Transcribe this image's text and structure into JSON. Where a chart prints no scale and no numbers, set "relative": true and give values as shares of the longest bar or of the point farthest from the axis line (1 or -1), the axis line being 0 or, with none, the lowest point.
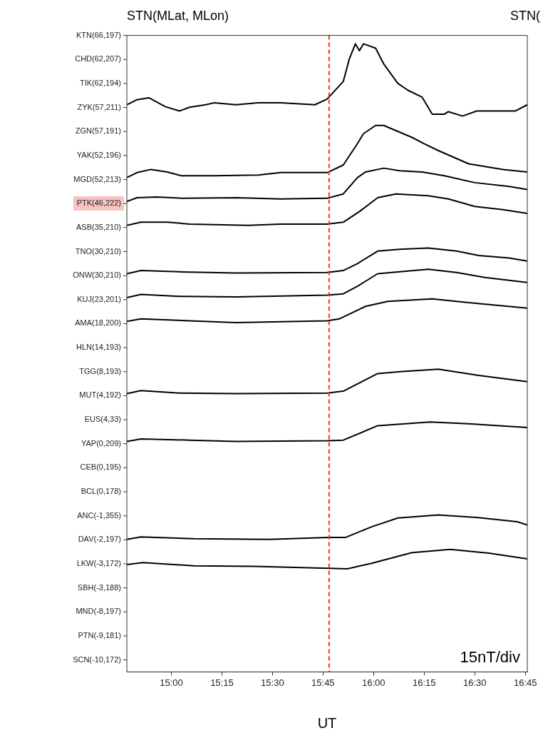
{
  "chart_data": {
    "type": "line",
    "title": "STN(MLat, MLon)",
    "xlabel": "UT",
    "annotations": [
      "15nT/div",
      "STN("
    ],
    "relative": true,
    "xlim": [
      14.78,
      16.76
    ],
    "xticks": [
      {
        "value": 15,
        "label": "15:00"
      },
      {
        "value": 15.25,
        "label": "15:15"
      },
      {
        "value": 15.5,
        "label": "15:30"
      },
      {
        "value": 15.75,
        "label": "15:45"
      },
      {
        "value": 16,
        "label": "16:00"
      },
      {
        "value": 16.25,
        "label": "16:15"
      },
      {
        "value": 16.5,
        "label": "16:30"
      },
      {
        "value": 16.75,
        "label": "16:45"
      }
    ],
    "y_categories": [
      "KTN(66,197)",
      "CHD(62,207)",
      "TIK(62,194)",
      "ZYK(57,211)",
      "ZGN(57,191)",
      "YAK(52,196)",
      "MGD(52,213)",
      "PTK(46,222)",
      "ASB(35,210)",
      "TNO(30,210)",
      "ONW(30,210)",
      "KUJ(23,201)",
      "AMA(18,200)",
      "HLN(14,193)",
      "TGG(8,193)",
      "MUT(4,192)",
      "EUS(4,33)",
      "YAP(0,209)",
      "CEB(0,195)",
      "BCL(0,178)",
      "ANC(-1,355)",
      "DAV(-2,197)",
      "LKW(-3,172)",
      "SBH(-3,188)",
      "MND(-8,197)",
      "PTN(-9,181)",
      "SCN(-10,172)"
    ],
    "marker": "none",
    "line_style": "solid",
    "ref_lines": [
      {
        "axis": "x",
        "value": 15.78,
        "color": "#ff2a2a",
        "line_style": "dashed"
      }
    ],
    "series": [
      {
        "color": "#000000",
        "x": [
          14.78,
          14.83,
          14.89,
          14.97,
          15.04,
          15.09,
          15.17,
          15.21,
          15.32,
          15.43,
          15.54,
          15.71,
          15.77,
          15.85,
          15.88,
          15.91,
          15.93,
          15.95,
          16.01,
          16.05,
          16.12,
          16.17,
          16.24,
          16.29,
          16.35,
          16.37,
          16.44,
          16.51,
          16.7,
          16.76
        ],
        "values": [
          0.903,
          0.911,
          0.914,
          0.9,
          0.893,
          0.899,
          0.903,
          0.906,
          0.903,
          0.906,
          0.906,
          0.903,
          0.912,
          0.94,
          0.976,
          1,
          0.989,
          1,
          0.993,
          0.968,
          0.937,
          0.926,
          0.915,
          0.888,
          0.888,
          0.892,
          0.885,
          0.893,
          0.893,
          0.903
        ]
      },
      {
        "color": "#000000",
        "x": [
          14.78,
          14.83,
          14.9,
          14.98,
          15.05,
          15.21,
          15.43,
          15.54,
          15.77,
          15.85,
          15.92,
          15.95,
          16.01,
          16.05,
          16.19,
          16.25,
          16.32,
          16.47,
          16.64,
          16.76
        ],
        "values": [
          0.787,
          0.795,
          0.8,
          0.796,
          0.79,
          0.79,
          0.791,
          0.795,
          0.795,
          0.807,
          0.841,
          0.857,
          0.87,
          0.87,
          0.851,
          0.841,
          0.83,
          0.809,
          0.8,
          0.796
        ]
      },
      {
        "color": "#000000",
        "x": [
          14.78,
          14.83,
          14.93,
          15.06,
          15.32,
          15.54,
          15.77,
          15.85,
          15.92,
          15.96,
          16.05,
          16.13,
          16.24,
          16.35,
          16.5,
          16.67,
          16.76
        ],
        "values": [
          0.749,
          0.755,
          0.756,
          0.754,
          0.755,
          0.753,
          0.754,
          0.761,
          0.787,
          0.796,
          0.802,
          0.798,
          0.796,
          0.79,
          0.779,
          0.773,
          0.768
        ]
      },
      {
        "color": "#000000",
        "x": [
          14.78,
          14.85,
          14.98,
          15.09,
          15.38,
          15.54,
          15.77,
          15.85,
          15.93,
          16.02,
          16.11,
          16.27,
          16.37,
          16.5,
          16.64,
          16.76
        ],
        "values": [
          0.711,
          0.716,
          0.716,
          0.713,
          0.711,
          0.713,
          0.713,
          0.716,
          0.733,
          0.755,
          0.761,
          0.758,
          0.753,
          0.741,
          0.736,
          0.73
        ]
      },
      {
        "color": "#000000",
        "x": [
          14.78,
          14.85,
          15.04,
          15.32,
          15.77,
          15.85,
          15.92,
          16.02,
          16.13,
          16.27,
          16.41,
          16.52,
          16.67,
          16.76
        ],
        "values": [
          0.634,
          0.639,
          0.637,
          0.635,
          0.636,
          0.639,
          0.65,
          0.67,
          0.673,
          0.675,
          0.67,
          0.663,
          0.659,
          0.654
        ]
      },
      {
        "color": "#000000",
        "x": [
          14.78,
          14.85,
          15.04,
          15.32,
          15.77,
          15.85,
          15.92,
          16.02,
          16.13,
          16.27,
          16.41,
          16.55,
          16.76
        ],
        "values": [
          0.596,
          0.601,
          0.598,
          0.597,
          0.6,
          0.602,
          0.614,
          0.634,
          0.637,
          0.641,
          0.636,
          0.628,
          0.62
        ]
      },
      {
        "color": "#000000",
        "x": [
          14.78,
          14.85,
          15.09,
          15.32,
          15.77,
          15.83,
          15.96,
          16.07,
          16.29,
          16.47,
          16.76
        ],
        "values": [
          0.558,
          0.562,
          0.559,
          0.556,
          0.559,
          0.562,
          0.582,
          0.59,
          0.594,
          0.588,
          0.579
        ]
      },
      {
        "color": "#000000",
        "x": [
          14.78,
          14.85,
          15.04,
          15.32,
          15.77,
          15.85,
          16.02,
          16.13,
          16.32,
          16.52,
          16.76
        ],
        "values": [
          0.443,
          0.448,
          0.444,
          0.443,
          0.444,
          0.447,
          0.475,
          0.478,
          0.482,
          0.472,
          0.462
        ]
      },
      {
        "color": "#000000",
        "x": [
          14.78,
          14.85,
          15.09,
          15.32,
          15.77,
          15.85,
          16.02,
          16.28,
          16.47,
          16.76
        ],
        "values": [
          0.367,
          0.371,
          0.369,
          0.367,
          0.368,
          0.369,
          0.392,
          0.398,
          0.395,
          0.389
        ]
      },
      {
        "color": "#000000",
        "x": [
          14.78,
          14.85,
          15.11,
          15.48,
          15.78,
          15.86,
          15.99,
          16.12,
          16.32,
          16.51,
          16.71,
          16.76
        ],
        "values": [
          0.211,
          0.215,
          0.212,
          0.211,
          0.214,
          0.214,
          0.231,
          0.245,
          0.25,
          0.246,
          0.239,
          0.234
        ]
      },
      {
        "color": "#000000",
        "x": [
          14.78,
          14.86,
          15.11,
          15.41,
          15.78,
          15.87,
          15.99,
          16.19,
          16.38,
          16.57,
          16.76
        ],
        "values": [
          0.171,
          0.174,
          0.169,
          0.168,
          0.165,
          0.164,
          0.173,
          0.19,
          0.195,
          0.189,
          0.18
        ]
      }
    ]
  }
}
